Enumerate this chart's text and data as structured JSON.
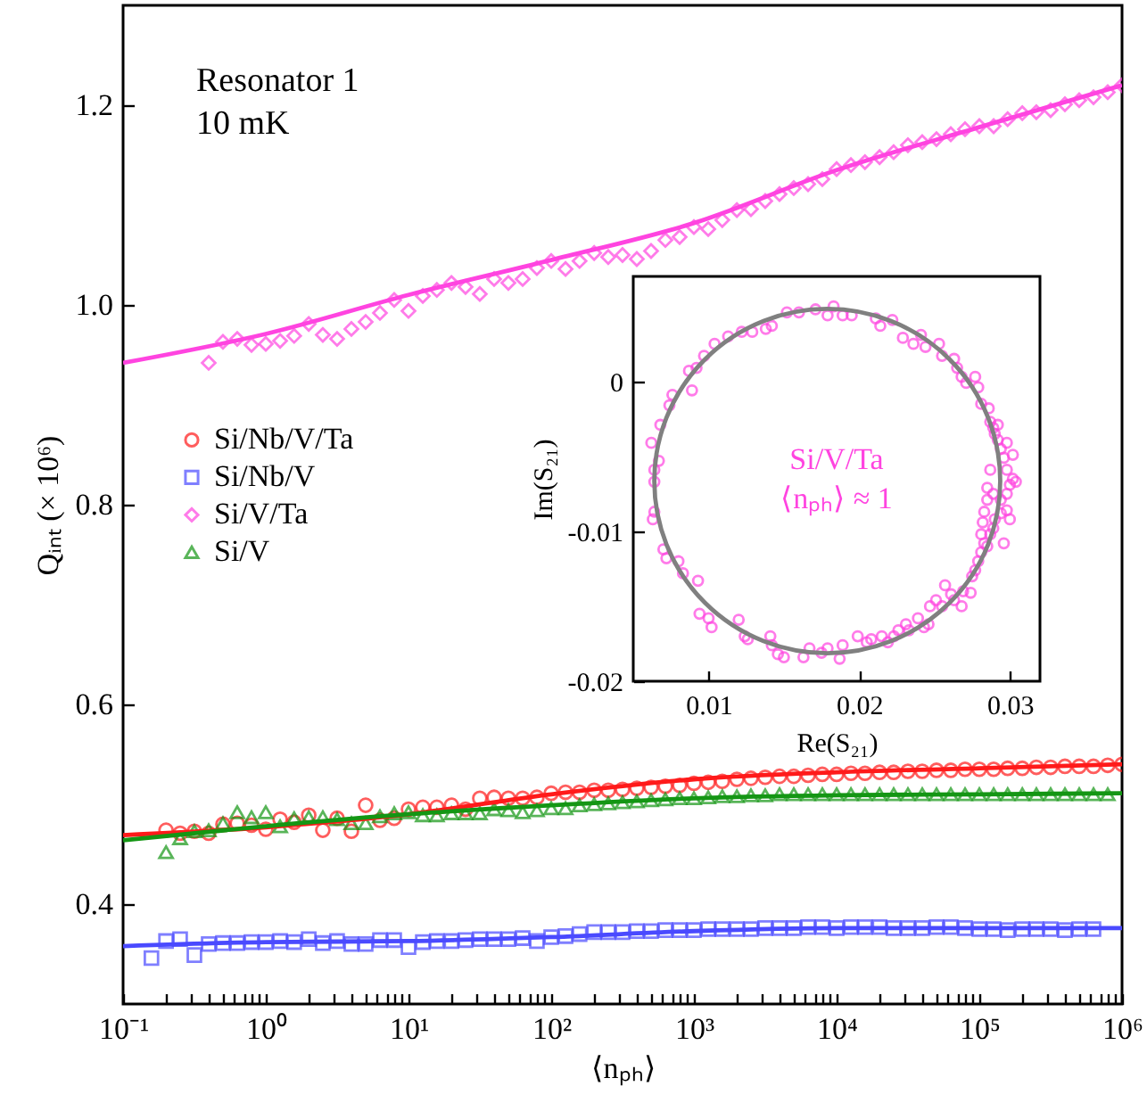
{
  "chart_data": [
    {
      "type": "scatter",
      "xlabel": "⟨nₚₕ⟩",
      "ylabel": "Qᵢₙₜ (× 10⁶)",
      "annotations": [
        "Resonator 1",
        "10 mK"
      ],
      "legend": "left",
      "log": "x",
      "xlim": [
        0.1,
        1000000
      ],
      "ylim": [
        0.3,
        1.3
      ],
      "xticks": [
        {
          "value": 0.1,
          "label": "10⁻¹"
        },
        {
          "value": 0.2,
          "label": null
        },
        {
          "value": 0.3,
          "label": null
        },
        {
          "value": 0.4,
          "label": null
        },
        {
          "value": 0.5,
          "label": null
        },
        {
          "value": 0.6,
          "label": null
        },
        {
          "value": 0.7,
          "label": null
        },
        {
          "value": 0.8,
          "label": null
        },
        {
          "value": 0.9,
          "label": null
        },
        {
          "value": 1,
          "label": "10⁰"
        },
        {
          "value": 2,
          "label": null
        },
        {
          "value": 3,
          "label": null
        },
        {
          "value": 4,
          "label": null
        },
        {
          "value": 5,
          "label": null
        },
        {
          "value": 6,
          "label": null
        },
        {
          "value": 7,
          "label": null
        },
        {
          "value": 8,
          "label": null
        },
        {
          "value": 9,
          "label": null
        },
        {
          "value": 10,
          "label": "10¹"
        },
        {
          "value": 20,
          "label": null
        },
        {
          "value": 30,
          "label": null
        },
        {
          "value": 40,
          "label": null
        },
        {
          "value": 50,
          "label": null
        },
        {
          "value": 60,
          "label": null
        },
        {
          "value": 70,
          "label": null
        },
        {
          "value": 80,
          "label": null
        },
        {
          "value": 90,
          "label": null
        },
        {
          "value": 100,
          "label": "10²"
        },
        {
          "value": 200,
          "label": null
        },
        {
          "value": 300,
          "label": null
        },
        {
          "value": 400,
          "label": null
        },
        {
          "value": 500,
          "label": null
        },
        {
          "value": 600,
          "label": null
        },
        {
          "value": 700,
          "label": null
        },
        {
          "value": 800,
          "label": null
        },
        {
          "value": 900,
          "label": null
        },
        {
          "value": 1000,
          "label": "10³"
        },
        {
          "value": 2000,
          "label": null
        },
        {
          "value": 3000,
          "label": null
        },
        {
          "value": 4000,
          "label": null
        },
        {
          "value": 5000,
          "label": null
        },
        {
          "value": 6000,
          "label": null
        },
        {
          "value": 7000,
          "label": null
        },
        {
          "value": 8000,
          "label": null
        },
        {
          "value": 9000,
          "label": null
        },
        {
          "value": 10000,
          "label": "10⁴"
        },
        {
          "value": 20000,
          "label": null
        },
        {
          "value": 30000,
          "label": null
        },
        {
          "value": 40000,
          "label": null
        },
        {
          "value": 50000,
          "label": null
        },
        {
          "value": 60000,
          "label": null
        },
        {
          "value": 70000,
          "label": null
        },
        {
          "value": 80000,
          "label": null
        },
        {
          "value": 90000,
          "label": null
        },
        {
          "value": 100000,
          "label": "10⁵"
        },
        {
          "value": 200000,
          "label": null
        },
        {
          "value": 300000,
          "label": null
        },
        {
          "value": 400000,
          "label": null
        },
        {
          "value": 500000,
          "label": null
        },
        {
          "value": 600000,
          "label": null
        },
        {
          "value": 700000,
          "label": null
        },
        {
          "value": 800000,
          "label": null
        },
        {
          "value": 900000,
          "label": null
        },
        {
          "value": 1000000,
          "label": "10⁶"
        }
      ],
      "yticks": [
        0.4,
        0.6,
        0.8,
        {
          "value": 1,
          "label": "1.0"
        },
        1.2
      ],
      "series": [
        {
          "name": "Si/Nb/V/Ta",
          "type": "scatter",
          "marker": "circle",
          "color": "#ff1a1a",
          "x": [
            0.2,
            0.251,
            0.316,
            0.398,
            0.501,
            0.631,
            0.794,
            1,
            1.26,
            1.58,
            2,
            2.51,
            3.16,
            3.98,
            5.01,
            6.31,
            7.94,
            10,
            12.6,
            15.8,
            20,
            25.1,
            31.6,
            39.8,
            50.1,
            63.1,
            79.4,
            100,
            126,
            158,
            200,
            251,
            316,
            398,
            501,
            631,
            794,
            1000,
            1260,
            1580,
            2000,
            2510,
            3160,
            3980,
            5010,
            6310,
            7940,
            10000,
            12600,
            15800,
            20000,
            25100,
            31600,
            39800,
            50100,
            63100,
            79400,
            100000,
            126000,
            158000,
            200000,
            251000,
            316000,
            398000,
            501000,
            631000,
            794000,
            1000000
          ],
          "values": [
            0.474,
            0.471,
            0.473,
            0.471,
            0.48,
            0.481,
            0.479,
            0.475,
            0.485,
            0.482,
            0.489,
            0.474,
            0.486,
            0.473,
            0.499,
            0.484,
            0.486,
            0.495,
            0.497,
            0.497,
            0.499,
            0.495,
            0.506,
            0.507,
            0.506,
            0.506,
            0.507,
            0.511,
            0.512,
            0.512,
            0.514,
            0.514,
            0.515,
            0.516,
            0.517,
            0.518,
            0.519,
            0.521,
            0.522,
            0.523,
            0.525,
            0.526,
            0.527,
            0.528,
            0.528,
            0.529,
            0.53,
            0.53,
            0.531,
            0.531,
            0.532,
            0.532,
            0.533,
            0.533,
            0.534,
            0.534,
            0.535,
            0.535,
            0.535,
            0.536,
            0.536,
            0.537,
            0.537,
            0.538,
            0.538,
            0.538,
            0.539,
            0.54
          ]
        },
        {
          "type": "line",
          "color": "#ff1a1a",
          "x": [
            0.1,
            1,
            10,
            100,
            1000,
            10000,
            100000,
            1000000
          ],
          "values": [
            0.469,
            0.477,
            0.49,
            0.51,
            0.525,
            0.532,
            0.536,
            0.54
          ]
        },
        {
          "name": "Si/Nb/V",
          "type": "scatter",
          "marker": "square",
          "color": "#4a4aff",
          "x": [
            0.158,
            0.2,
            0.251,
            0.316,
            0.398,
            0.501,
            0.631,
            0.794,
            1,
            1.26,
            1.58,
            2,
            2.51,
            3.16,
            3.98,
            5.01,
            6.31,
            7.94,
            10,
            12.6,
            15.8,
            20,
            25.1,
            31.6,
            39.8,
            50.1,
            63.1,
            79.4,
            100,
            126,
            158,
            200,
            251,
            316,
            398,
            501,
            631,
            794,
            1000,
            1260,
            1580,
            2000,
            2510,
            3160,
            3980,
            5010,
            6310,
            7940,
            10000,
            12600,
            15800,
            20000,
            25100,
            31600,
            39800,
            50100,
            63100,
            79400,
            100000,
            126000,
            158000,
            200000,
            251000,
            316000,
            398000,
            501000,
            631000
          ],
          "values": [
            0.346,
            0.363,
            0.365,
            0.349,
            0.36,
            0.361,
            0.361,
            0.362,
            0.362,
            0.363,
            0.362,
            0.365,
            0.361,
            0.363,
            0.36,
            0.36,
            0.364,
            0.364,
            0.357,
            0.362,
            0.363,
            0.363,
            0.364,
            0.365,
            0.365,
            0.365,
            0.366,
            0.363,
            0.367,
            0.368,
            0.37,
            0.372,
            0.372,
            0.372,
            0.373,
            0.373,
            0.374,
            0.374,
            0.374,
            0.375,
            0.375,
            0.375,
            0.375,
            0.376,
            0.376,
            0.376,
            0.377,
            0.377,
            0.376,
            0.377,
            0.377,
            0.377,
            0.376,
            0.376,
            0.376,
            0.377,
            0.377,
            0.376,
            0.375,
            0.375,
            0.374,
            0.375,
            0.375,
            0.375,
            0.374,
            0.375,
            0.375
          ]
        },
        {
          "type": "line",
          "color": "#4a4aff",
          "x": [
            0.1,
            1,
            10,
            100,
            1000,
            10000,
            100000,
            1000000
          ],
          "values": [
            0.358,
            0.362,
            0.363,
            0.367,
            0.373,
            0.376,
            0.376,
            0.376
          ]
        },
        {
          "name": "Si/V/Ta",
          "type": "scatter",
          "marker": "diamond",
          "color": "#ff44e0",
          "x": [
            0.398,
            0.501,
            0.631,
            0.794,
            1,
            1.26,
            1.58,
            2,
            2.51,
            3.16,
            3.98,
            5.01,
            6.31,
            7.94,
            10,
            12.6,
            15.8,
            20,
            25.1,
            31.6,
            39.8,
            50.1,
            63.1,
            79.4,
            100,
            126,
            158,
            200,
            251,
            316,
            398,
            501,
            631,
            794,
            1000,
            1260,
            1580,
            2000,
            2510,
            3160,
            3980,
            5010,
            6310,
            7940,
            10000,
            12600,
            15800,
            20000,
            25100,
            31600,
            39800,
            50100,
            63100,
            79400,
            100000,
            126000,
            158000,
            200000,
            251000,
            316000,
            398000,
            501000,
            631000,
            794000,
            1000000
          ],
          "values": [
            0.942,
            0.963,
            0.966,
            0.96,
            0.961,
            0.964,
            0.969,
            0.981,
            0.97,
            0.966,
            0.976,
            0.983,
            0.992,
            1.005,
            0.994,
            1.009,
            1.015,
            1.022,
            1.018,
            1.011,
            1.026,
            1.022,
            1.026,
            1.037,
            1.044,
            1.036,
            1.044,
            1.052,
            1.048,
            1.05,
            1.046,
            1.054,
            1.065,
            1.068,
            1.078,
            1.076,
            1.085,
            1.095,
            1.096,
            1.104,
            1.111,
            1.117,
            1.121,
            1.126,
            1.136,
            1.14,
            1.143,
            1.148,
            1.153,
            1.16,
            1.163,
            1.166,
            1.171,
            1.176,
            1.179,
            1.179,
            1.186,
            1.192,
            1.193,
            1.195,
            1.201,
            1.205,
            1.208,
            1.213,
            1.22
          ]
        },
        {
          "type": "line",
          "color": "#ff44e0",
          "x": [
            0.1,
            1,
            10,
            100,
            1000,
            10000,
            100000,
            1000000
          ],
          "values": [
            0.942,
            0.971,
            1.01,
            1.045,
            1.082,
            1.135,
            1.178,
            1.22
          ]
        },
        {
          "name": "Si/V",
          "type": "scatter",
          "marker": "triangle",
          "color": "#149614",
          "x": [
            0.2,
            0.251,
            0.316,
            0.398,
            0.501,
            0.631,
            0.794,
            1,
            1.26,
            1.58,
            2,
            2.51,
            3.16,
            3.98,
            5.01,
            6.31,
            7.94,
            10,
            12.6,
            15.8,
            20,
            25.1,
            31.6,
            39.8,
            50.1,
            63.1,
            79.4,
            100,
            126,
            158,
            200,
            251,
            316,
            398,
            501,
            631,
            794,
            1000,
            1260,
            1580,
            2000,
            2510,
            3160,
            3980,
            5010,
            6310,
            7940,
            10000,
            12600,
            15800,
            20000,
            25100,
            31600,
            39800,
            50100,
            63100,
            79400,
            100000,
            126000,
            158000,
            200000,
            251000,
            316000,
            398000,
            501000,
            631000,
            794000
          ],
          "values": [
            0.452,
            0.466,
            0.473,
            0.474,
            0.481,
            0.492,
            0.487,
            0.492,
            0.478,
            0.486,
            0.487,
            0.487,
            0.485,
            0.481,
            0.481,
            0.488,
            0.491,
            0.492,
            0.489,
            0.489,
            0.491,
            0.491,
            0.491,
            0.495,
            0.494,
            0.492,
            0.494,
            0.496,
            0.496,
            0.499,
            0.5,
            0.501,
            0.502,
            0.503,
            0.504,
            0.505,
            0.506,
            0.506,
            0.507,
            0.508,
            0.508,
            0.509,
            0.509,
            0.51,
            0.51,
            0.51,
            0.51,
            0.51,
            0.51,
            0.51,
            0.51,
            0.51,
            0.51,
            0.51,
            0.51,
            0.51,
            0.51,
            0.51,
            0.51,
            0.51,
            0.51,
            0.51,
            0.51,
            0.51,
            0.51,
            0.51,
            0.51
          ]
        },
        {
          "type": "line",
          "color": "#149614",
          "x": [
            0.1,
            1,
            10,
            100,
            1000,
            10000,
            100000,
            1000000
          ],
          "values": [
            0.464,
            0.478,
            0.49,
            0.499,
            0.506,
            0.509,
            0.51,
            0.511
          ]
        }
      ]
    },
    {
      "type": "scatter",
      "xlabel": "Re(S₂₁)",
      "ylabel": "Im(S₂₁)",
      "annotations": [
        "Si/V/Ta",
        "⟨nₚₕ⟩ ≈ 1"
      ],
      "xlim": [
        0.005,
        0.032
      ],
      "ylim": [
        -0.02,
        0.007
      ],
      "xticks": [
        0.01,
        0.02,
        0.03
      ],
      "yticks": [
        -0.02,
        -0.01,
        0
      ],
      "series": [
        {
          "type": "scatter",
          "marker": "circle",
          "color": "#ff44e0",
          "x": [
            0.0104,
            0.0113,
            0.0122,
            0.0129,
            0.0138,
            0.0142,
            0.0152,
            0.016,
            0.0171,
            0.0179,
            0.0183,
            0.0189,
            0.0195,
            0.0211,
            0.0214,
            0.0222,
            0.0229,
            0.0236,
            0.0241,
            0.0244,
            0.0253,
            0.0255,
            0.0263,
            0.0265,
            0.0268,
            0.0271,
            0.0277,
            0.0279,
            0.0281,
            0.0286,
            0.0097,
            0.0092,
            0.0087,
            0.0089,
            0.0076,
            0.0074,
            0.0068,
            0.0062,
            0.0067,
            0.0064,
            0.0064,
            0.0064,
            0.0063,
            0.007,
            0.0072,
            0.008,
            0.0083,
            0.0093,
            0.0094,
            0.01,
            0.0102,
            0.012,
            0.0124,
            0.0126,
            0.0141,
            0.0142,
            0.0146,
            0.015,
            0.0163,
            0.0167,
            0.0175,
            0.0179,
            0.0187,
            0.0189,
            0.0199,
            0.0205,
            0.0208,
            0.0215,
            0.0219,
            0.0223,
            0.0226,
            0.0231,
            0.0233,
            0.0239,
            0.0243,
            0.0246,
            0.0247,
            0.0251,
            0.0255,
            0.0257,
            0.0261,
            0.0263,
            0.0268,
            0.0269,
            0.0274,
            0.0275,
            0.0277,
            0.0279,
            0.0281,
            0.0283,
            0.0285,
            0.0287,
            0.0289,
            0.029,
            0.0294,
            0.0298,
            0.03,
            0.0296,
            0.0294,
            0.0298,
            0.03,
            0.0302,
            0.0304,
            0.0298,
            0.0296,
            0.0294,
            0.0292,
            0.029,
            0.0289,
            0.0298,
            0.0302,
            0.0292,
            0.0287,
            0.0287,
            0.0285,
            0.0283,
            0.0282,
            0.0285,
            0.0289,
            0.0281
          ],
          "values": [
            0.0025,
            0.003,
            0.0033,
            0.0033,
            0.0035,
            0.0037,
            0.0046,
            0.0046,
            0.0048,
            0.0044,
            0.005,
            0.0044,
            0.0044,
            0.0042,
            0.0037,
            0.0041,
            0.0029,
            0.0025,
            0.0031,
            0.0023,
            0.0025,
            0.0017,
            0.0015,
            0.0009,
            0.0003,
            -0.0001,
            0.0003,
            -0.0004,
            -0.0015,
            -0.0018,
            0.0017,
            0.0009,
            0.0007,
            -0.0006,
            -0.0009,
            -0.0016,
            -0.0029,
            -0.0041,
            -0.0053,
            -0.0059,
            -0.0067,
            -0.0087,
            -0.0092,
            -0.0112,
            -0.0118,
            -0.012,
            -0.0128,
            -0.0133,
            -0.0155,
            -0.0158,
            -0.0164,
            -0.0159,
            -0.017,
            -0.0172,
            -0.017,
            -0.0176,
            -0.0182,
            -0.0184,
            -0.0184,
            -0.0178,
            -0.0181,
            -0.0178,
            -0.0185,
            -0.0176,
            -0.017,
            -0.0174,
            -0.0172,
            -0.017,
            -0.0174,
            -0.017,
            -0.0166,
            -0.0162,
            -0.0166,
            -0.0158,
            -0.0164,
            -0.0162,
            -0.015,
            -0.0146,
            -0.015,
            -0.0136,
            -0.0142,
            -0.0146,
            -0.015,
            -0.014,
            -0.0141,
            -0.013,
            -0.0126,
            -0.012,
            -0.0114,
            -0.0108,
            -0.011,
            -0.0102,
            -0.0098,
            -0.0092,
            -0.0088,
            -0.0086,
            -0.0092,
            -0.0108,
            -0.0079,
            -0.0075,
            -0.0069,
            -0.0065,
            -0.0067,
            -0.0059,
            -0.0051,
            -0.0045,
            -0.0039,
            -0.0035,
            -0.0031,
            -0.0041,
            -0.0049,
            -0.0029,
            -0.0027,
            -0.0059,
            -0.0071,
            -0.0087,
            -0.0094,
            -0.0079,
            -0.0075,
            -0.0102
          ]
        }
      ]
    }
  ]
}
